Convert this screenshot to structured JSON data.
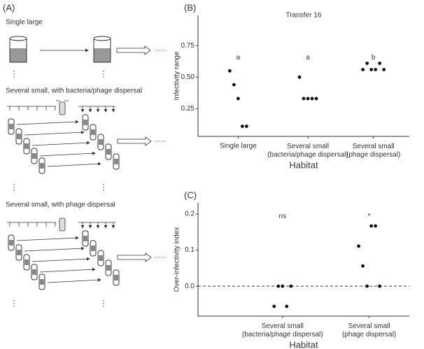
{
  "diagram": {
    "panel_label": "(A)",
    "sections": [
      {
        "title": "Single large"
      },
      {
        "title": "Several small, with bacteria/phage dispersal"
      },
      {
        "title": "Several small, with phage dispersal"
      }
    ]
  },
  "chart_data": [
    {
      "type": "scatter",
      "panel_label": "(B)",
      "title": "Transfer 16",
      "y_label": "Infectivity range",
      "x_label": "Habitat",
      "categories": [
        "Single large",
        "Several small\n(bacteria/phage dispersal)",
        "Several small\n(phage dispersal)"
      ],
      "values": [
        [
          0.55,
          0.44,
          0.33,
          0.11,
          0.11
        ],
        [
          0.5,
          0.33,
          0.33,
          0.33,
          0.33
        ],
        [
          0.56,
          0.61,
          0.56,
          0.56,
          0.61,
          0.56
        ]
      ],
      "annotations": [
        "a",
        "a",
        "b"
      ],
      "color": "#111",
      "ylim": [
        0.03,
        0.99
      ],
      "yticks": [
        0.25,
        {
          "value": 0.5,
          "label": "0.50"
        },
        0.75
      ]
    },
    {
      "type": "scatter",
      "panel_label": "(C)",
      "y_label": "Over-infectivity index",
      "x_label": "Habitat",
      "categories": [
        "Several small\n(bacteria/phage dispersal)",
        "Several small\n(phage dispersal)"
      ],
      "values": [
        [
          -0.056,
          0,
          0,
          -0.056,
          0
        ],
        [
          0.111,
          0.056,
          0,
          0.167,
          0.167,
          0
        ]
      ],
      "annotations": [
        "ns",
        "*"
      ],
      "color": "#111",
      "reference_line": 0,
      "ylim": [
        -0.083,
        0.231
      ],
      "yticks": [
        {
          "value": 0,
          "label": "0.0"
        },
        {
          "value": 0.1,
          "label": "0.1"
        },
        {
          "value": 0.2,
          "label": "0.2"
        }
      ]
    }
  ]
}
